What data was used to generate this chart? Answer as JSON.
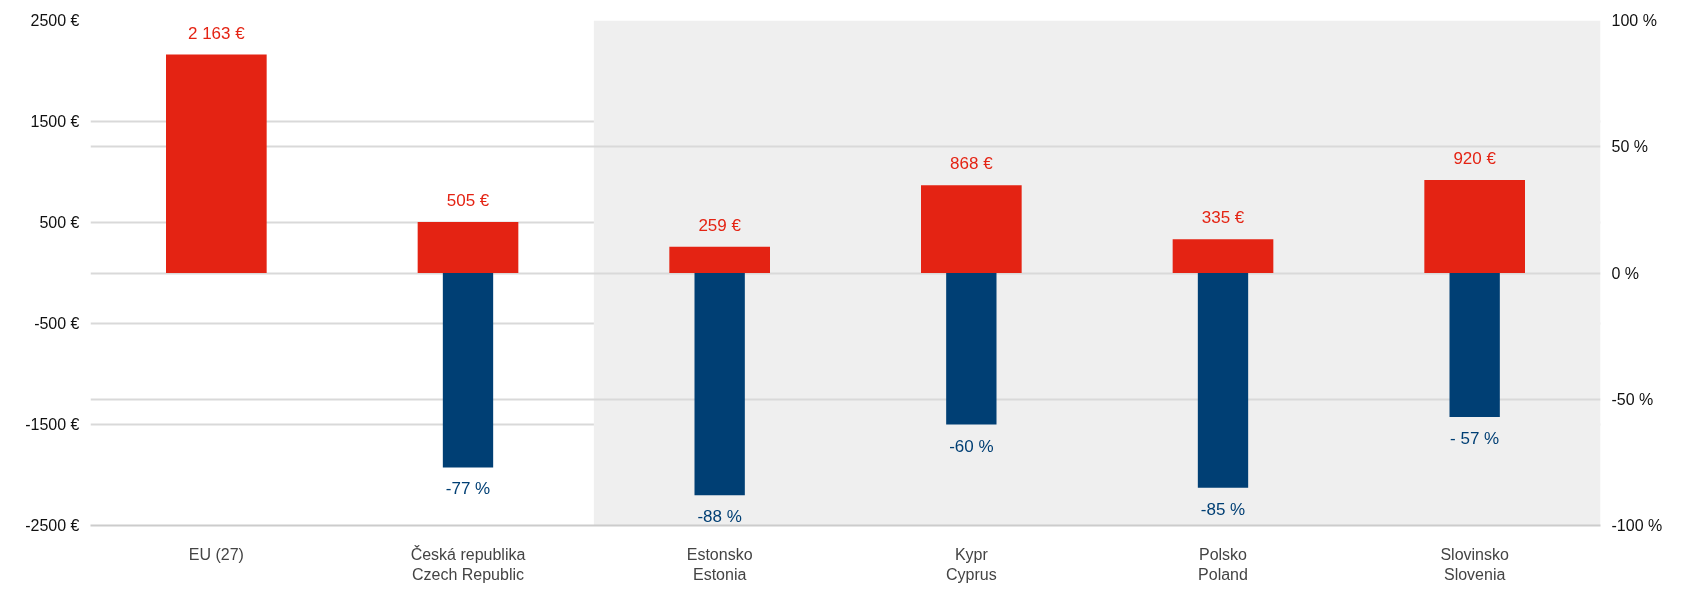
{
  "chart_data": {
    "type": "bar",
    "categories": [
      "EU (27)",
      "Česká republika\nCzech Republic",
      "Estonsko\nEstonia",
      "Kypr\nCyprus",
      "Polsko\nPoland",
      "Slovinsko\nSlovenia"
    ],
    "series": [
      {
        "color": "#e42313",
        "values": [
          2163,
          505,
          259,
          868,
          335,
          920
        ],
        "value_labels": [
          "2 163 €",
          "505 €",
          "259 €",
          "868 €",
          "335 €",
          "920 €"
        ]
      },
      {
        "color": "#003f74",
        "axis": "y2",
        "values": [
          null,
          -77,
          -88,
          -60,
          -85,
          -57
        ],
        "value_labels": [
          null,
          "-77 %",
          "-88 %",
          "-60 %",
          "-85 %",
          "- 57 %"
        ]
      }
    ],
    "ylim": [
      -2500,
      2500
    ],
    "yticks": [
      {
        "value": 2500,
        "label": "2500 €"
      },
      {
        "value": 1500,
        "label": "1500 €"
      },
      {
        "value": 500,
        "label": "500 €"
      },
      {
        "value": -500,
        "label": "-500 €"
      },
      {
        "value": -1500,
        "label": "-1500 €"
      },
      {
        "value": -2500,
        "label": "-2500 €"
      }
    ],
    "y2lim": [
      -100,
      100
    ],
    "y2ticks": [
      {
        "value": 100,
        "label": "100 %"
      },
      {
        "value": 50,
        "label": "50 %"
      },
      {
        "value": 0,
        "label": "0 %"
      },
      {
        "value": -50,
        "label": "-50 %"
      },
      {
        "value": -100,
        "label": "-100 %"
      }
    ],
    "bands": [
      {
        "axis": "x",
        "from": "Estonsko\nEstonia",
        "to": "Slovinsko\nSlovenia",
        "color": "#efefef"
      }
    ],
    "grid": "y"
  }
}
